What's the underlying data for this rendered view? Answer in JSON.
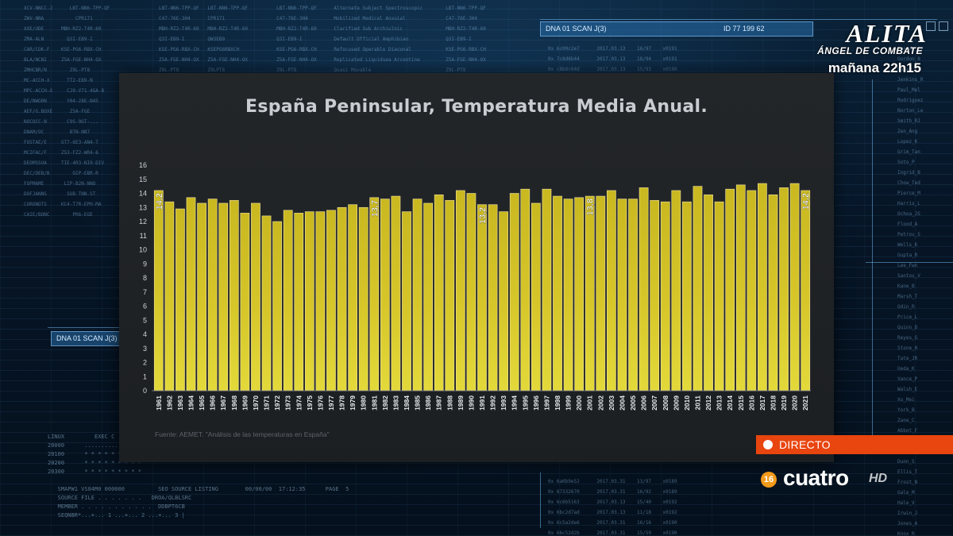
{
  "chart_data": {
    "type": "bar",
    "title": "España Peninsular, Temperatura Media Anual.",
    "source": "Fuente: AEMET. \"Análisis de las temperaturas en España\"",
    "categories": [
      "1961",
      "1962",
      "1963",
      "1964",
      "1965",
      "1966",
      "1967",
      "1968",
      "1969",
      "1970",
      "1971",
      "1972",
      "1973",
      "1974",
      "1975",
      "1976",
      "1977",
      "1978",
      "1979",
      "1980",
      "1981",
      "1982",
      "1983",
      "1984",
      "1985",
      "1986",
      "1987",
      "1988",
      "1989",
      "1990",
      "1991",
      "1992",
      "1993",
      "1994",
      "1995",
      "1996",
      "1997",
      "1998",
      "1999",
      "2000",
      "2001",
      "2002",
      "2003",
      "2004",
      "2005",
      "2006",
      "2007",
      "2008",
      "2009",
      "2010",
      "2011",
      "2012",
      "2013",
      "2014",
      "2015",
      "2016",
      "2017",
      "2018",
      "2019",
      "2020",
      "2021"
    ],
    "values": [
      14.2,
      13.4,
      12.9,
      13.7,
      13.3,
      13.6,
      13.3,
      13.5,
      12.6,
      13.3,
      12.4,
      12.0,
      12.8,
      12.6,
      12.7,
      12.7,
      12.8,
      13.0,
      13.2,
      13.0,
      13.7,
      13.6,
      13.8,
      12.7,
      13.6,
      13.3,
      13.9,
      13.5,
      14.2,
      14.0,
      13.2,
      13.2,
      12.7,
      14.0,
      14.3,
      13.3,
      14.3,
      13.8,
      13.6,
      13.7,
      13.8,
      13.8,
      14.2,
      13.6,
      13.6,
      14.4,
      13.5,
      13.4,
      14.2,
      13.4,
      14.5,
      13.9,
      13.4,
      14.3,
      14.6,
      14.2,
      14.7,
      13.9,
      14.4,
      14.7,
      14.2
    ],
    "labeled_points": [
      {
        "category": "1961",
        "label": "14,2"
      },
      {
        "category": "1981",
        "label": "13,7"
      },
      {
        "category": "1991",
        "label": "13,2"
      },
      {
        "category": "2001",
        "label": "13,8"
      },
      {
        "category": "2021",
        "label": "14,2"
      }
    ],
    "yticks": [
      "0",
      "1",
      "2",
      "3",
      "4",
      "5",
      "6",
      "7",
      "8",
      "9",
      "10",
      "11",
      "12",
      "13",
      "14",
      "15",
      "16"
    ],
    "ylim": [
      0,
      16
    ],
    "xlabel": "",
    "ylabel": "",
    "bar_color": "#c9b820",
    "bar_edge_color": "#f1e3a0",
    "grid": false
  },
  "overlays": {
    "promo": {
      "title": "ALITA",
      "subtitle": "ÁNGEL DE COMBATE",
      "time": "mañana 22h15"
    },
    "live_label": "DIRECTO",
    "channel": {
      "age_rating": "16",
      "name": "cuatro",
      "hd": "HD"
    },
    "scan_tag_left": "DNA 01 SCAN J(3)",
    "scan_tag_top": "DNA 01 SCAN J(3)",
    "scan_tag_id": "ID 77 199 62"
  },
  "colors": {
    "live_bg": "#e8450f",
    "age_badge": "#f29a1a",
    "panel_bg": "#202326"
  }
}
